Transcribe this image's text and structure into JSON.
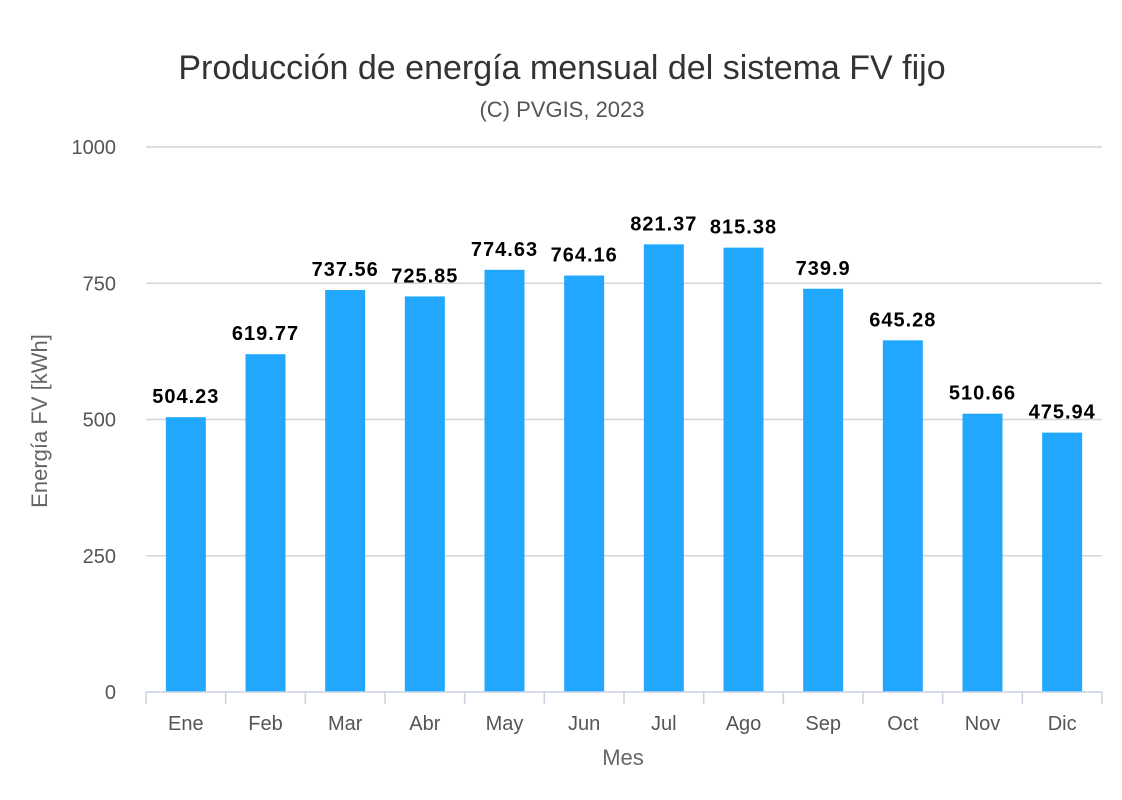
{
  "chart_data": {
    "type": "bar",
    "title": "Producción de energía mensual del sistema FV fijo",
    "subtitle": "(C) PVGIS, 2023",
    "xlabel": "Mes",
    "ylabel": "Energía FV [kWh]",
    "categories": [
      "Ene",
      "Feb",
      "Mar",
      "Abr",
      "May",
      "Jun",
      "Jul",
      "Ago",
      "Sep",
      "Oct",
      "Nov",
      "Dic"
    ],
    "values": [
      504.23,
      619.77,
      737.56,
      725.85,
      774.63,
      764.16,
      821.37,
      815.38,
      739.9,
      645.28,
      510.66,
      475.94
    ],
    "data_labels": [
      "504.23",
      "619.77",
      "737.56",
      "725.85",
      "774.63",
      "764.16",
      "821.37",
      "815.38",
      "739.9",
      "645.28",
      "510.66",
      "475.94"
    ],
    "ylim": [
      0,
      1000
    ],
    "yticks": [
      0,
      250,
      500,
      750,
      1000
    ],
    "ytick_labels": [
      "0",
      "250",
      "500",
      "750",
      "1000"
    ],
    "grid": true,
    "legend": "none",
    "bar_color": "#21a7fd"
  }
}
